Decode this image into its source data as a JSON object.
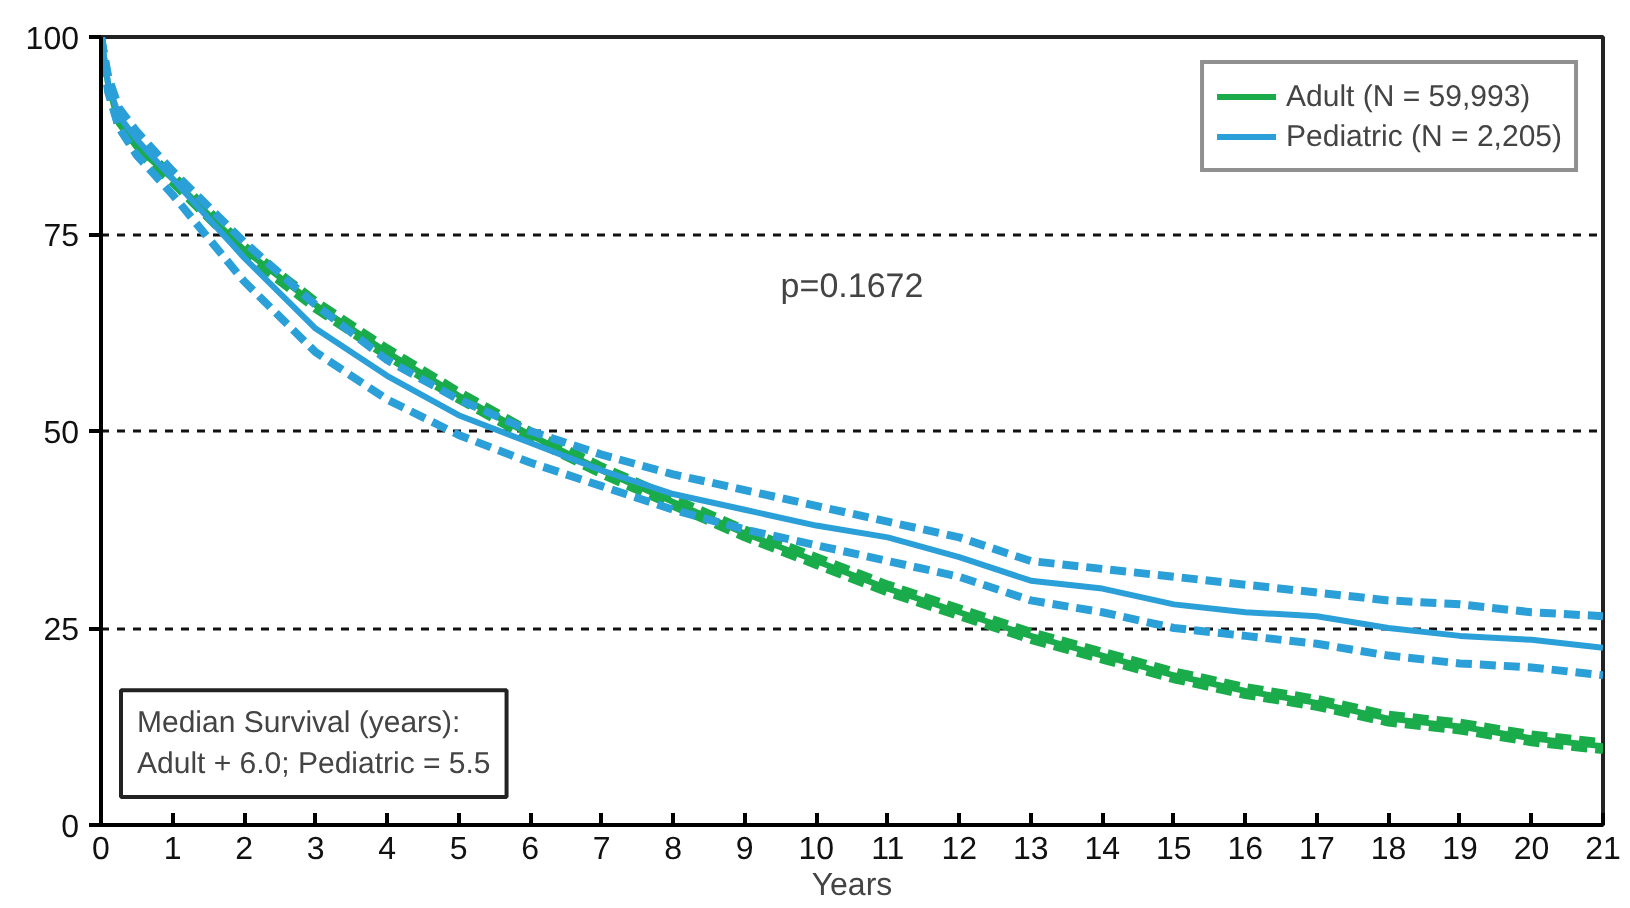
{
  "chart_data": {
    "type": "line",
    "xlabel": "Years",
    "xlim": [
      0,
      21
    ],
    "ylim": [
      0,
      100
    ],
    "xticks": [
      0,
      1,
      2,
      3,
      4,
      5,
      6,
      7,
      8,
      9,
      10,
      11,
      12,
      13,
      14,
      15,
      16,
      17,
      18,
      19,
      20,
      21
    ],
    "yticks": [
      0,
      25,
      50,
      75,
      100
    ],
    "grid": "y",
    "legend": "top right",
    "line_style": "solid",
    "annotations": [
      "p=0.1672",
      "Median Survival (years):\nAdult + 6.0; Pediatric = 5.5"
    ],
    "x": [
      0,
      0.1,
      0.25,
      0.5,
      1,
      2,
      3,
      4,
      5,
      6,
      7,
      8,
      9,
      10,
      11,
      12,
      13,
      14,
      15,
      16,
      17,
      18,
      19,
      20,
      21
    ],
    "series": [
      {
        "name": "Adult (N = 59,993)",
        "color": "#1aab4b",
        "values": [
          100,
          94,
          89,
          86,
          82,
          73,
          66,
          60,
          54.5,
          49.5,
          45,
          41,
          37,
          33.5,
          30,
          27,
          24,
          21.5,
          19,
          17,
          15.5,
          13.5,
          12.5,
          11,
          10
        ]
      },
      {
        "color": "#1aab4b",
        "line_style": "dashed",
        "values": [
          100,
          94.5,
          89.5,
          86.5,
          82.5,
          73.5,
          66.5,
          60.5,
          55,
          50,
          45.5,
          41.5,
          37.5,
          34,
          30.5,
          27.5,
          24.5,
          22,
          19.5,
          17.5,
          16,
          14,
          13,
          11.5,
          10.5
        ]
      },
      {
        "color": "#1aab4b",
        "line_style": "dashed",
        "values": [
          100,
          93.5,
          88.5,
          85.5,
          81.5,
          72.5,
          65.5,
          59.5,
          54,
          49,
          44.5,
          40.5,
          36.5,
          33,
          29.5,
          26.5,
          23.5,
          21,
          18.5,
          16.5,
          15,
          13,
          12,
          10.5,
          9.5
        ]
      },
      {
        "name": "Pediatric (N = 2,205)",
        "color": "#2b9fd8",
        "values": [
          100,
          94,
          90,
          87,
          82,
          72,
          63,
          57,
          52,
          48.5,
          45,
          42,
          40,
          38,
          36.5,
          34,
          31,
          30,
          28,
          27,
          26.5,
          25,
          24,
          23.5,
          22.5
        ]
      },
      {
        "color": "#2b9fd8",
        "line_style": "dashed",
        "values": [
          100,
          95,
          91,
          88,
          83,
          74,
          66,
          59,
          54,
          50,
          47,
          44.5,
          42.5,
          40.5,
          38.5,
          36.5,
          33.5,
          32.5,
          31.5,
          30.5,
          29.5,
          28.5,
          28,
          27,
          26.5
        ]
      },
      {
        "color": "#2b9fd8",
        "line_style": "dashed",
        "values": [
          100,
          93,
          88.5,
          85,
          80,
          69,
          60,
          54,
          49.5,
          46,
          43,
          40,
          37.5,
          35.5,
          33.5,
          31.5,
          28.5,
          27,
          25,
          24,
          23,
          21.5,
          20.5,
          20,
          19
        ]
      }
    ]
  }
}
